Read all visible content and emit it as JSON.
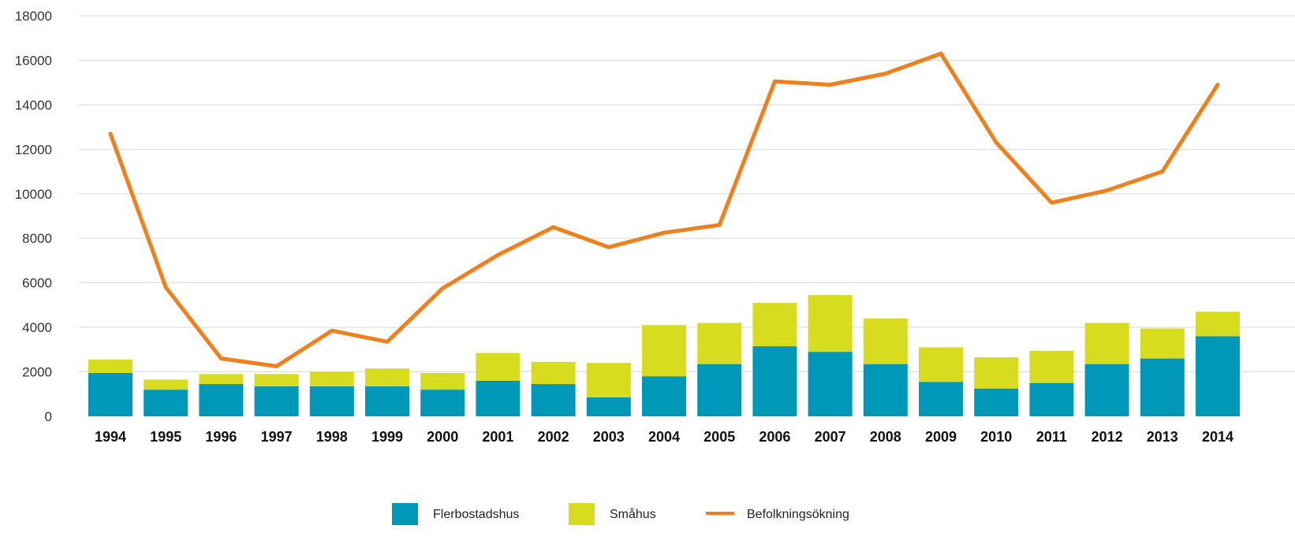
{
  "chart_data": {
    "type": "bar",
    "stacked": true,
    "categories": [
      "1994",
      "1995",
      "1996",
      "1997",
      "1998",
      "1999",
      "2000",
      "2001",
      "2002",
      "2003",
      "2004",
      "2005",
      "2006",
      "2007",
      "2008",
      "2009",
      "2010",
      "2011",
      "2012",
      "2013",
      "2014"
    ],
    "y_ticks": [
      "0",
      "2000",
      "4000",
      "6000",
      "8000",
      "10000",
      "12000",
      "14000",
      "16000",
      "18000"
    ],
    "ylim": [
      0,
      18000
    ],
    "grid": true,
    "legend_position": "bottom",
    "series": [
      {
        "name": "Flerbostadshus",
        "type": "bar",
        "color": "#0098b8",
        "values": [
          1950,
          1200,
          1450,
          1350,
          1350,
          1350,
          1200,
          1600,
          1450,
          850,
          1800,
          2350,
          3150,
          2900,
          2350,
          1550,
          1250,
          1500,
          2350,
          2600,
          3600
        ]
      },
      {
        "name": "Småhus",
        "type": "bar",
        "color": "#d8dc1e",
        "values": [
          600,
          450,
          450,
          550,
          650,
          800,
          750,
          1250,
          1000,
          1550,
          2300,
          1850,
          1950,
          2550,
          2050,
          1550,
          1400,
          1450,
          1850,
          1350,
          1100
        ]
      },
      {
        "name": "Befolkningsökning",
        "type": "line",
        "color": "#f07f1e",
        "values": [
          12700,
          5800,
          2600,
          2250,
          3850,
          3350,
          5750,
          7250,
          8500,
          7600,
          8250,
          8600,
          15050,
          14900,
          15400,
          16300,
          12300,
          9600,
          10150,
          11000,
          14900
        ]
      }
    ]
  }
}
